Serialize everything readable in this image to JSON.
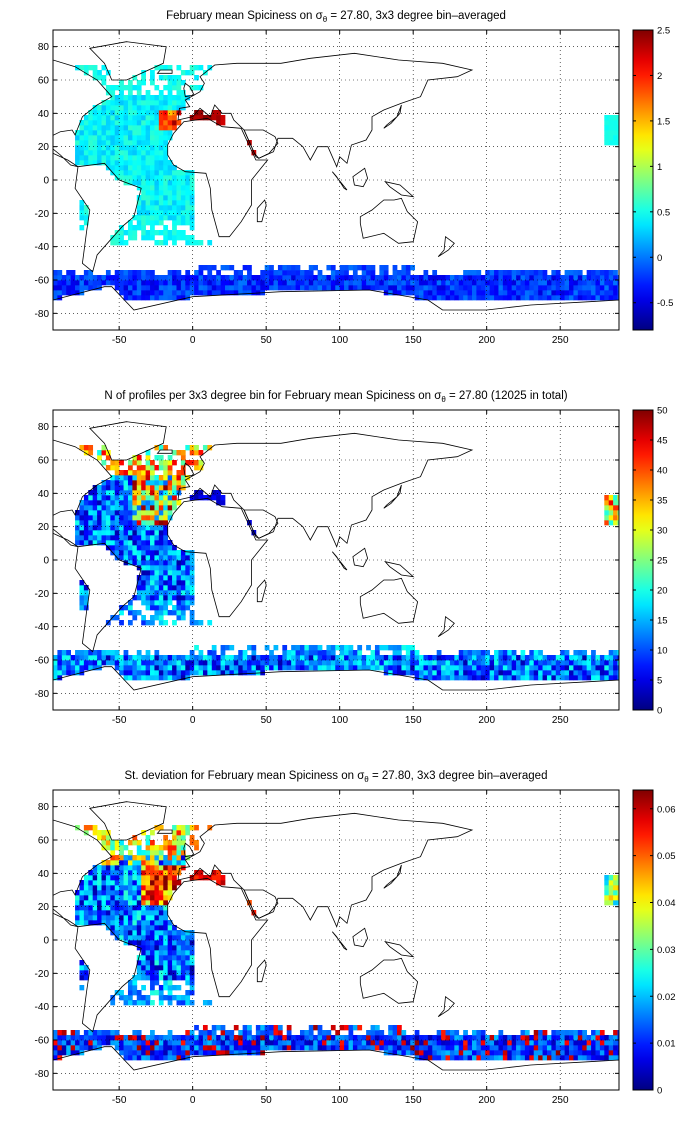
{
  "chart_data": [
    {
      "type": "heatmap",
      "title_main": "February mean Spiciness on σ",
      "title_sub": "θ",
      "title_tail": " = 27.80, 3x3 degree bin–averaged",
      "xlim": [
        -95,
        290
      ],
      "ylim": [
        -90,
        90
      ],
      "xticks": [
        -50,
        0,
        50,
        100,
        150,
        200,
        250
      ],
      "yticks": [
        -80,
        -60,
        -40,
        -20,
        0,
        20,
        40,
        60,
        80
      ],
      "grid": true,
      "colorbar": {
        "min": -0.8,
        "max": 2.5,
        "ticks": [
          "-0.5",
          "0",
          "0.5",
          "1",
          "1.5",
          "2",
          "2.5"
        ],
        "tick_values": [
          -0.5,
          0,
          0.5,
          1,
          1.5,
          2,
          2.5
        ]
      },
      "regions": [
        {
          "name": "atlantic",
          "lon": [
            -75,
            -5
          ],
          "lat": [
            -40,
            38
          ],
          "value": 0.35
        },
        {
          "name": "north-atlantic",
          "lon": [
            -60,
            10
          ],
          "lat": [
            38,
            68
          ],
          "value": 0.5
        },
        {
          "name": "gulf-of-cadiz",
          "lon": [
            -20,
            -5
          ],
          "lat": [
            30,
            42
          ],
          "value": 2.3
        },
        {
          "name": "mediterranean",
          "lon": [
            0,
            20
          ],
          "lat": [
            34,
            42
          ],
          "value": 2.4
        },
        {
          "name": "red-sea",
          "lon": [
            36,
            42
          ],
          "lat": [
            14,
            24
          ],
          "value": 2.5
        },
        {
          "name": "southern-ocean",
          "lon": [
            -95,
            290
          ],
          "lat": [
            -72,
            -54
          ],
          "value": -0.3
        },
        {
          "name": "pacific-east",
          "lon": [
            283,
            290
          ],
          "lat": [
            20,
            40
          ],
          "value": 0.5
        }
      ]
    },
    {
      "type": "heatmap",
      "title_main": "N of profiles per 3x3 degree bin for February mean Spiciness on σ",
      "title_sub": "θ",
      "title_tail": " = 27.80 (12025 in total)",
      "xlim": [
        -95,
        290
      ],
      "ylim": [
        -90,
        90
      ],
      "xticks": [
        -50,
        0,
        50,
        100,
        150,
        200,
        250
      ],
      "yticks": [
        -80,
        -60,
        -40,
        -20,
        0,
        20,
        40,
        60,
        80
      ],
      "grid": true,
      "colorbar": {
        "min": 0,
        "max": 50,
        "ticks": [
          "0",
          "5",
          "10",
          "15",
          "20",
          "25",
          "30",
          "35",
          "40",
          "45",
          "50"
        ],
        "tick_values": [
          0,
          5,
          10,
          15,
          20,
          25,
          30,
          35,
          40,
          45,
          50
        ]
      },
      "total_profiles": 12025
    },
    {
      "type": "heatmap",
      "title_main": "St. deviation for February mean Spiciness on σ",
      "title_sub": "θ",
      "title_tail": " = 27.80, 3x3 degree bin–averaged",
      "xlim": [
        -95,
        290
      ],
      "ylim": [
        -90,
        90
      ],
      "xticks": [
        -50,
        0,
        50,
        100,
        150,
        200,
        250
      ],
      "yticks": [
        -80,
        -60,
        -40,
        -20,
        0,
        20,
        40,
        60,
        80
      ],
      "grid": true,
      "colorbar": {
        "min": 0,
        "max": 0.064,
        "ticks": [
          "0",
          "0.01",
          "0.02",
          "0.03",
          "0.04",
          "0.05",
          "0.06"
        ],
        "tick_values": [
          0,
          0.01,
          0.02,
          0.03,
          0.04,
          0.05,
          0.06
        ]
      }
    }
  ]
}
